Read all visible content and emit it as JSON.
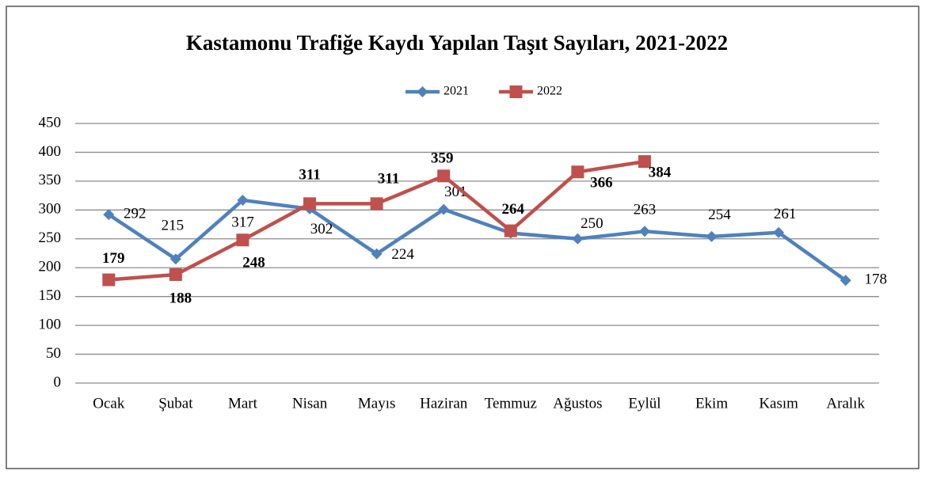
{
  "chart_data": {
    "type": "line",
    "title": "Kastamonu Trafiğe Kaydı Yapılan Taşıt Sayıları, 2021-2022",
    "categories": [
      "Ocak",
      "Şubat",
      "Mart",
      "Nisan",
      "Mayıs",
      "Haziran",
      "Temmuz",
      "Ağustos",
      "Eylül",
      "Ekim",
      "Kasım",
      "Aralık"
    ],
    "series": [
      {
        "name": "2021",
        "color": "#4f81bd",
        "marker": "diamond",
        "values": [
          292,
          215,
          317,
          302,
          224,
          301,
          260,
          250,
          263,
          254,
          261,
          178
        ],
        "value_labels": [
          "292",
          "215",
          "317",
          "302",
          "224",
          "301",
          null,
          "250",
          "263",
          "254",
          "261",
          "178"
        ]
      },
      {
        "name": "2022",
        "color": "#c0504d",
        "marker": "square",
        "values": [
          179,
          188,
          248,
          311,
          311,
          359,
          264,
          366,
          384,
          null,
          null,
          null
        ]
      }
    ],
    "ylim": [
      0,
      450
    ],
    "yticks": [
      0,
      50,
      100,
      150,
      200,
      250,
      300,
      350,
      400,
      450
    ],
    "grid": true,
    "legend": "top"
  }
}
